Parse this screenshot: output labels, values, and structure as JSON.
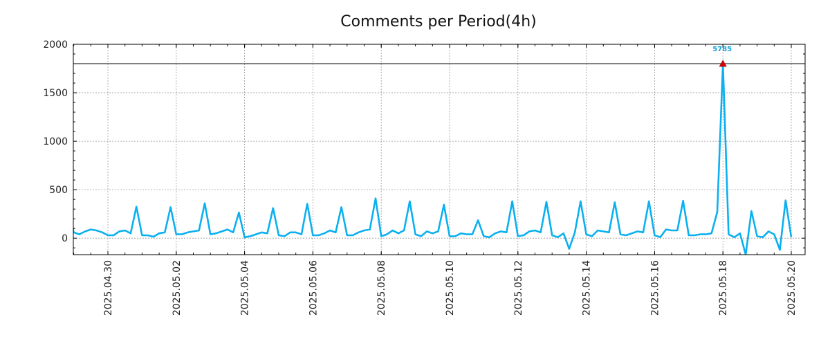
{
  "chart_data": {
    "type": "line",
    "title": "Comments per Period(4h)",
    "xlabel": "",
    "ylabel": "",
    "ylim": [
      -170,
      2000
    ],
    "y_ticks": [
      0,
      500,
      1000,
      1500,
      2000
    ],
    "x_ticks": [
      "2025.04.30",
      "2025.05.02",
      "2025.05.04",
      "2025.05.06",
      "2025.05.08",
      "2025.05.10",
      "2025.05.12",
      "2025.05.14",
      "2025.05.16",
      "2025.05.18",
      "2025.05.20"
    ],
    "grid": true,
    "reference_line_y": 1800,
    "peak_annotation": {
      "label": "5785",
      "y": 1800
    },
    "colors": {
      "line": "#0ab0f0",
      "grid": "#999999",
      "marker": "#dd0000",
      "annotation": "#0aa0d8"
    },
    "series": [
      {
        "points": [
          [
            "2025-04-28T12:00",
            70
          ],
          [
            "2025-04-28T16:00",
            80
          ],
          [
            "2025-04-28T20:00",
            320
          ],
          [
            "2025-04-29T00:00",
            60
          ],
          [
            "2025-04-29T04:00",
            40
          ],
          [
            "2025-04-29T08:00",
            70
          ],
          [
            "2025-04-29T12:00",
            90
          ],
          [
            "2025-04-29T16:00",
            80
          ],
          [
            "2025-04-29T20:00",
            60
          ],
          [
            "2025-04-30T00:00",
            30
          ],
          [
            "2025-04-30T04:00",
            30
          ],
          [
            "2025-04-30T08:00",
            70
          ],
          [
            "2025-04-30T12:00",
            80
          ],
          [
            "2025-04-30T16:00",
            50
          ],
          [
            "2025-04-30T20:00",
            325
          ],
          [
            "2025-05-01T00:00",
            30
          ],
          [
            "2025-05-01T04:00",
            30
          ],
          [
            "2025-05-01T08:00",
            15
          ],
          [
            "2025-05-01T12:00",
            50
          ],
          [
            "2025-05-01T16:00",
            60
          ],
          [
            "2025-05-01T20:00",
            320
          ],
          [
            "2025-05-02T00:00",
            40
          ],
          [
            "2025-05-02T04:00",
            40
          ],
          [
            "2025-05-02T08:00",
            60
          ],
          [
            "2025-05-02T12:00",
            70
          ],
          [
            "2025-05-02T16:00",
            80
          ],
          [
            "2025-05-02T20:00",
            360
          ],
          [
            "2025-05-03T00:00",
            40
          ],
          [
            "2025-05-03T04:00",
            50
          ],
          [
            "2025-05-03T08:00",
            70
          ],
          [
            "2025-05-03T12:00",
            90
          ],
          [
            "2025-05-03T16:00",
            60
          ],
          [
            "2025-05-03T20:00",
            265
          ],
          [
            "2025-05-04T00:00",
            10
          ],
          [
            "2025-05-04T04:00",
            20
          ],
          [
            "2025-05-04T08:00",
            40
          ],
          [
            "2025-05-04T12:00",
            60
          ],
          [
            "2025-05-04T16:00",
            50
          ],
          [
            "2025-05-04T20:00",
            310
          ],
          [
            "2025-05-05T00:00",
            30
          ],
          [
            "2025-05-05T04:00",
            20
          ],
          [
            "2025-05-05T08:00",
            60
          ],
          [
            "2025-05-05T12:00",
            60
          ],
          [
            "2025-05-05T16:00",
            40
          ],
          [
            "2025-05-05T20:00",
            355
          ],
          [
            "2025-05-06T00:00",
            30
          ],
          [
            "2025-05-06T04:00",
            30
          ],
          [
            "2025-05-06T08:00",
            50
          ],
          [
            "2025-05-06T12:00",
            80
          ],
          [
            "2025-05-06T16:00",
            60
          ],
          [
            "2025-05-06T20:00",
            320
          ],
          [
            "2025-05-07T00:00",
            30
          ],
          [
            "2025-05-07T04:00",
            30
          ],
          [
            "2025-05-07T08:00",
            60
          ],
          [
            "2025-05-07T12:00",
            80
          ],
          [
            "2025-05-07T16:00",
            90
          ],
          [
            "2025-05-07T20:00",
            410
          ],
          [
            "2025-05-08T00:00",
            20
          ],
          [
            "2025-05-08T04:00",
            40
          ],
          [
            "2025-05-08T08:00",
            80
          ],
          [
            "2025-05-08T12:00",
            50
          ],
          [
            "2025-05-08T16:00",
            80
          ],
          [
            "2025-05-08T20:00",
            380
          ],
          [
            "2025-05-09T00:00",
            40
          ],
          [
            "2025-05-09T04:00",
            20
          ],
          [
            "2025-05-09T08:00",
            70
          ],
          [
            "2025-05-09T12:00",
            50
          ],
          [
            "2025-05-09T16:00",
            70
          ],
          [
            "2025-05-09T20:00",
            345
          ],
          [
            "2025-05-10T00:00",
            20
          ],
          [
            "2025-05-10T04:00",
            20
          ],
          [
            "2025-05-10T08:00",
            50
          ],
          [
            "2025-05-10T12:00",
            40
          ],
          [
            "2025-05-10T16:00",
            40
          ],
          [
            "2025-05-10T20:00",
            185
          ],
          [
            "2025-05-11T00:00",
            20
          ],
          [
            "2025-05-11T04:00",
            10
          ],
          [
            "2025-05-11T08:00",
            50
          ],
          [
            "2025-05-11T12:00",
            70
          ],
          [
            "2025-05-11T16:00",
            60
          ],
          [
            "2025-05-11T20:00",
            380
          ],
          [
            "2025-05-12T00:00",
            20
          ],
          [
            "2025-05-12T04:00",
            30
          ],
          [
            "2025-05-12T08:00",
            70
          ],
          [
            "2025-05-12T12:00",
            80
          ],
          [
            "2025-05-12T16:00",
            60
          ],
          [
            "2025-05-12T20:00",
            375
          ],
          [
            "2025-05-13T00:00",
            30
          ],
          [
            "2025-05-13T04:00",
            10
          ],
          [
            "2025-05-13T08:00",
            50
          ],
          [
            "2025-05-13T12:00",
            -110
          ],
          [
            "2025-05-13T16:00",
            60
          ],
          [
            "2025-05-13T20:00",
            380
          ],
          [
            "2025-05-14T00:00",
            40
          ],
          [
            "2025-05-14T04:00",
            20
          ],
          [
            "2025-05-14T08:00",
            80
          ],
          [
            "2025-05-14T12:00",
            70
          ],
          [
            "2025-05-14T16:00",
            60
          ],
          [
            "2025-05-14T20:00",
            370
          ],
          [
            "2025-05-15T00:00",
            40
          ],
          [
            "2025-05-15T04:00",
            30
          ],
          [
            "2025-05-15T08:00",
            50
          ],
          [
            "2025-05-15T12:00",
            70
          ],
          [
            "2025-05-15T16:00",
            60
          ],
          [
            "2025-05-15T20:00",
            380
          ],
          [
            "2025-05-16T00:00",
            30
          ],
          [
            "2025-05-16T04:00",
            10
          ],
          [
            "2025-05-16T08:00",
            90
          ],
          [
            "2025-05-16T12:00",
            80
          ],
          [
            "2025-05-16T16:00",
            80
          ],
          [
            "2025-05-16T20:00",
            385
          ],
          [
            "2025-05-17T00:00",
            30
          ],
          [
            "2025-05-17T04:00",
            30
          ],
          [
            "2025-05-17T08:00",
            40
          ],
          [
            "2025-05-17T12:00",
            40
          ],
          [
            "2025-05-17T16:00",
            50
          ],
          [
            "2025-05-17T20:00",
            270
          ],
          [
            "2025-05-18T00:00",
            1800
          ],
          [
            "2025-05-18T04:00",
            40
          ],
          [
            "2025-05-18T08:00",
            10
          ],
          [
            "2025-05-18T12:00",
            50
          ],
          [
            "2025-05-18T16:00",
            -170
          ],
          [
            "2025-05-18T20:00",
            280
          ],
          [
            "2025-05-19T00:00",
            20
          ],
          [
            "2025-05-19T04:00",
            10
          ],
          [
            "2025-05-19T08:00",
            70
          ],
          [
            "2025-05-19T12:00",
            40
          ],
          [
            "2025-05-19T16:00",
            -120
          ],
          [
            "2025-05-19T20:00",
            390
          ],
          [
            "2025-05-20T00:00",
            10
          ]
        ]
      }
    ]
  }
}
